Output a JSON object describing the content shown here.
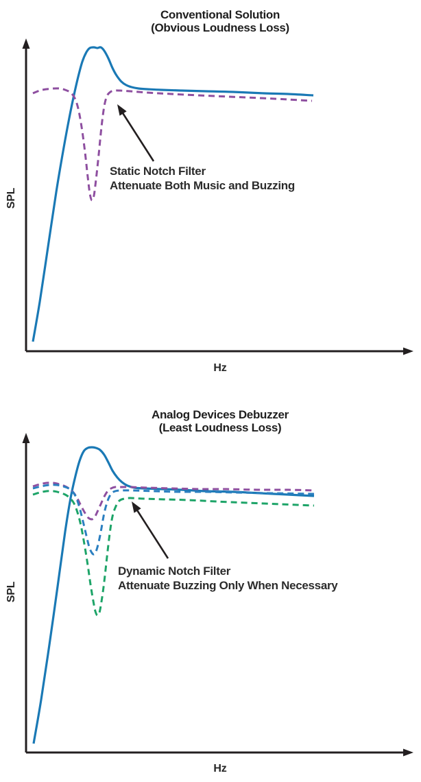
{
  "palette": {
    "music_blue": "#1a79b5",
    "notch_purple": "#8e4fa0",
    "notch_blue": "#2b7fc0",
    "notch_green": "#1da468",
    "axis_black": "#231f20",
    "text_dark": "#2b2b2b"
  },
  "chart_data": [
    {
      "type": "line",
      "title": "Conventional Solution",
      "subtitle": "(Obvious Loudness Loss)",
      "xlabel": "Hz",
      "ylabel": "SPL",
      "axis_ticks": "none (qualitative sketch, arrowed axes)",
      "legend": "none",
      "axis": {
        "origin": [
          38,
          512
        ],
        "x_tip": [
          603,
          512
        ],
        "y_tip": [
          38,
          56
        ]
      },
      "annotation": {
        "lines": [
          "Static Notch Filter",
          "Attenuate Both Music and Buzzing"
        ],
        "arrow": {
          "tail": [
            224,
            235
          ],
          "tip": [
            171,
            152
          ]
        }
      },
      "series": [
        {
          "name": "music-spectrum",
          "style": "solid",
          "color": "#1a79b5",
          "width": 3.2,
          "points": [
            [
              48,
              498
            ],
            [
              58,
              440
            ],
            [
              70,
              360
            ],
            [
              82,
              280
            ],
            [
              93,
              215
            ],
            [
              101,
              172
            ],
            [
              108,
              138
            ],
            [
              114,
              112
            ],
            [
              120,
              90
            ],
            [
              126,
              76
            ],
            [
              131,
              70
            ],
            [
              137,
              69
            ],
            [
              142,
              70
            ],
            [
              147,
              69
            ],
            [
              152,
              74
            ],
            [
              158,
              85
            ],
            [
              164,
              99
            ],
            [
              170,
              110
            ],
            [
              177,
              119
            ],
            [
              184,
              124
            ],
            [
              192,
              127
            ],
            [
              202,
              129
            ],
            [
              215,
              130
            ],
            [
              235,
              131
            ],
            [
              265,
              132
            ],
            [
              300,
              133
            ],
            [
              340,
              134
            ],
            [
              385,
              136
            ],
            [
              420,
              137
            ],
            [
              457,
              139
            ]
          ]
        },
        {
          "name": "static-notch-filter",
          "style": "dashed",
          "color": "#8e4fa0",
          "width": 3,
          "points": [
            [
              48,
              136
            ],
            [
              58,
              132
            ],
            [
              68,
              130
            ],
            [
              78,
              129
            ],
            [
              87,
              129
            ],
            [
              95,
              131
            ],
            [
              103,
              135
            ],
            [
              109,
              143
            ],
            [
              114,
              158
            ],
            [
              119,
              185
            ],
            [
              124,
              222
            ],
            [
              128,
              258
            ],
            [
              131,
              282
            ],
            [
              134,
              292
            ],
            [
              137,
              285
            ],
            [
              140,
              262
            ],
            [
              144,
              225
            ],
            [
              148,
              185
            ],
            [
              152,
              155
            ],
            [
              156,
              140
            ],
            [
              161,
              134
            ],
            [
              167,
              132
            ],
            [
              175,
              132
            ],
            [
              190,
              133
            ],
            [
              215,
              135
            ],
            [
              250,
              137
            ],
            [
              290,
              139
            ],
            [
              335,
              141
            ],
            [
              380,
              143
            ],
            [
              420,
              145
            ],
            [
              455,
              147
            ]
          ]
        }
      ]
    },
    {
      "type": "line",
      "title": "Analog Devices Debuzzer",
      "subtitle": "(Least Loudness Loss)",
      "xlabel": "Hz",
      "ylabel": "SPL",
      "axis_ticks": "none (qualitative sketch, arrowed axes)",
      "legend": "none",
      "axis": {
        "origin": [
          38,
          1097
        ],
        "x_tip": [
          603,
          1097
        ],
        "y_tip": [
          38,
          631
        ]
      },
      "annotation": {
        "lines": [
          "Dynamic Notch Filter",
          "Attenuate Buzzing Only When Necessary"
        ],
        "arrow": {
          "tail": [
            245,
            814
          ],
          "tip": [
            192,
            731
          ]
        }
      },
      "series": [
        {
          "name": "music-spectrum",
          "style": "solid",
          "color": "#1a79b5",
          "width": 3.2,
          "points": [
            [
              49,
              1084
            ],
            [
              60,
              1020
            ],
            [
              72,
              940
            ],
            [
              84,
              855
            ],
            [
              95,
              775
            ],
            [
              103,
              726
            ],
            [
              110,
              694
            ],
            [
              116,
              672
            ],
            [
              122,
              658
            ],
            [
              128,
              653
            ],
            [
              134,
              652
            ],
            [
              140,
              653
            ],
            [
              146,
              656
            ],
            [
              152,
              663
            ],
            [
              158,
              674
            ],
            [
              164,
              686
            ],
            [
              171,
              696
            ],
            [
              178,
              703
            ],
            [
              186,
              708
            ],
            [
              196,
              711
            ],
            [
              210,
              712
            ],
            [
              235,
              713
            ],
            [
              265,
              714
            ],
            [
              300,
              716
            ],
            [
              340,
              717
            ],
            [
              380,
              719
            ],
            [
              420,
              721
            ],
            [
              458,
              723
            ]
          ]
        },
        {
          "name": "dynamic-notch-shallow",
          "style": "dashed",
          "color": "#8e4fa0",
          "width": 3,
          "points": [
            [
              48,
              709
            ],
            [
              58,
              706
            ],
            [
              68,
              704
            ],
            [
              78,
              704
            ],
            [
              87,
              706
            ],
            [
              95,
              709
            ],
            [
              102,
              713
            ],
            [
              108,
              719
            ],
            [
              113,
              727
            ],
            [
              118,
              737
            ],
            [
              124,
              748
            ],
            [
              129,
              755
            ],
            [
              134,
              757
            ],
            [
              138,
              754
            ],
            [
              142,
              746
            ],
            [
              147,
              735
            ],
            [
              152,
              724
            ],
            [
              157,
              716
            ],
            [
              162,
              712
            ],
            [
              168,
              710
            ],
            [
              176,
              710
            ],
            [
              190,
              710
            ],
            [
              215,
              711
            ],
            [
              250,
              712
            ],
            [
              290,
              713
            ],
            [
              330,
              713
            ],
            [
              375,
              714
            ],
            [
              420,
              714
            ],
            [
              458,
              715
            ]
          ]
        },
        {
          "name": "dynamic-notch-medium",
          "style": "dashed",
          "color": "#2b7fc0",
          "width": 3,
          "points": [
            [
              48,
              712
            ],
            [
              60,
              709
            ],
            [
              72,
              707
            ],
            [
              83,
              707
            ],
            [
              92,
              709
            ],
            [
              100,
              712
            ],
            [
              106,
              717
            ],
            [
              111,
              725
            ],
            [
              116,
              740
            ],
            [
              121,
              760
            ],
            [
              126,
              781
            ],
            [
              130,
              797
            ],
            [
              134,
              806
            ],
            [
              137,
              808
            ],
            [
              140,
              804
            ],
            [
              144,
              790
            ],
            [
              148,
              770
            ],
            [
              152,
              748
            ],
            [
              157,
              730
            ],
            [
              162,
              720
            ],
            [
              168,
              716
            ],
            [
              176,
              715
            ],
            [
              195,
              715
            ],
            [
              225,
              716
            ],
            [
              260,
              717
            ],
            [
              300,
              717
            ],
            [
              345,
              718
            ],
            [
              395,
              719
            ],
            [
              458,
              720
            ]
          ]
        },
        {
          "name": "dynamic-notch-deep",
          "style": "dashed",
          "color": "#1da468",
          "width": 3,
          "points": [
            [
              48,
              721
            ],
            [
              58,
              718
            ],
            [
              68,
              716
            ],
            [
              78,
              716
            ],
            [
              87,
              718
            ],
            [
              95,
              721
            ],
            [
              102,
              726
            ],
            [
              108,
              734
            ],
            [
              113,
              747
            ],
            [
              118,
              766
            ],
            [
              123,
              793
            ],
            [
              128,
              824
            ],
            [
              132,
              852
            ],
            [
              136,
              876
            ],
            [
              139,
              891
            ],
            [
              142,
              897
            ],
            [
              145,
              893
            ],
            [
              148,
              877
            ],
            [
              152,
              848
            ],
            [
              156,
              812
            ],
            [
              160,
              778
            ],
            [
              164,
              753
            ],
            [
              169,
              738
            ],
            [
              174,
              730
            ],
            [
              181,
              727
            ],
            [
              190,
              726
            ],
            [
              210,
              727
            ],
            [
              240,
              728
            ],
            [
              275,
              729
            ],
            [
              315,
              731
            ],
            [
              360,
              733
            ],
            [
              410,
              735
            ],
            [
              458,
              737
            ]
          ]
        }
      ]
    }
  ]
}
